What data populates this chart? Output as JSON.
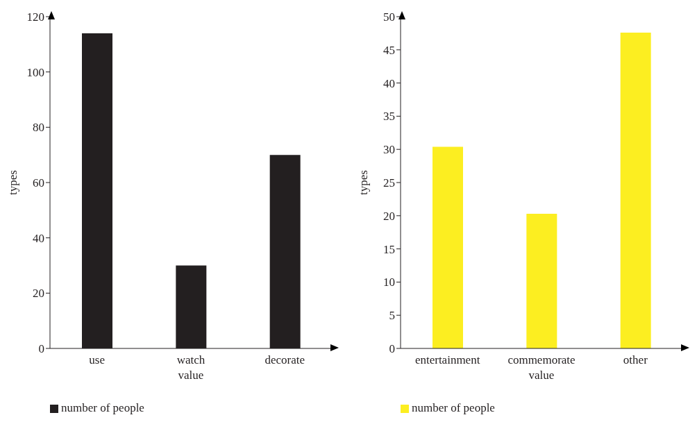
{
  "chart_data": [
    {
      "type": "bar",
      "ylabel": "types",
      "categories": [
        "use",
        "watch value",
        "decorate"
      ],
      "series": [
        {
          "name": "number of people",
          "color": "#231f20",
          "values": [
            114,
            30,
            70
          ]
        }
      ],
      "ylim": [
        0,
        120
      ],
      "yticks": [
        0,
        20,
        40,
        60,
        80,
        100,
        120
      ],
      "grid": false,
      "legend": "bottom left"
    },
    {
      "type": "bar",
      "ylabel": "types",
      "categories": [
        "entertainment",
        "commemorate value",
        "other"
      ],
      "series": [
        {
          "name": "number of people",
          "color": "#fcee21",
          "values": [
            30.4,
            20.3,
            47.6
          ]
        }
      ],
      "ylim": [
        0,
        50
      ],
      "yticks": [
        0,
        5,
        10,
        15,
        20,
        25,
        30,
        35,
        40,
        45,
        50
      ],
      "grid": false,
      "legend": "bottom left"
    }
  ]
}
